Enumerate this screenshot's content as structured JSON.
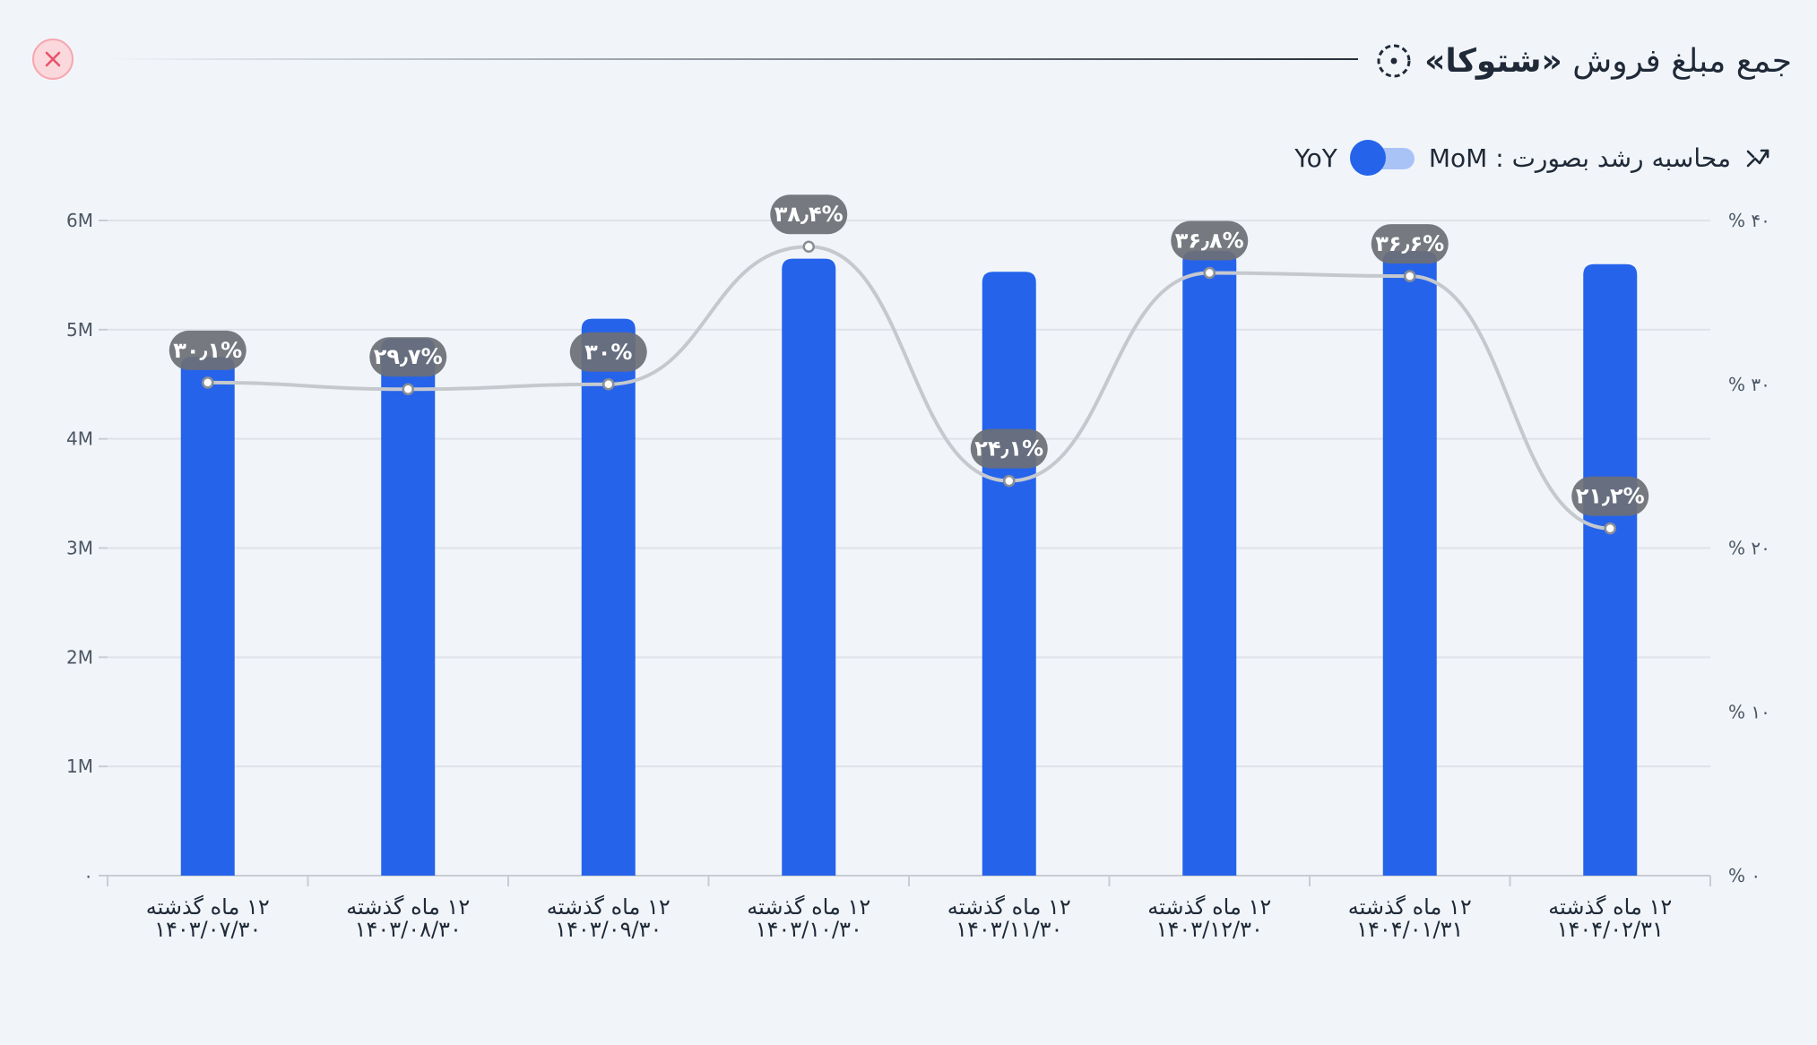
{
  "header": {
    "title_prefix": "جمع مبلغ فروش ",
    "title_brand": "«شتوکا»",
    "icon": "dashed-circle-icon",
    "close_icon": "close-icon"
  },
  "controls": {
    "growth_label": "محاسبه رشد بصورت : MoM",
    "yoy_label": "YoY",
    "trend_icon": "trend-arrows-icon",
    "toggle_state": "MoM"
  },
  "colors": {
    "bar": "#2563eb",
    "line": "#c5c9ce",
    "label_bg": "#6b6f75",
    "close_accent": "#e8536a"
  },
  "chart_data": {
    "type": "bar",
    "categories": [
      [
        "۱۲ ماه گذشته",
        "۱۴۰۳/۰۷/۳۰"
      ],
      [
        "۱۲ ماه گذشته",
        "۱۴۰۳/۰۸/۳۰"
      ],
      [
        "۱۲ ماه گذشته",
        "۱۴۰۳/۰۹/۳۰"
      ],
      [
        "۱۲ ماه گذشته",
        "۱۴۰۳/۱۰/۳۰"
      ],
      [
        "۱۲ ماه گذشته",
        "۱۴۰۳/۱۱/۳۰"
      ],
      [
        "۱۲ ماه گذشته",
        "۱۴۰۳/۱۲/۳۰"
      ],
      [
        "۱۲ ماه گذشته",
        "۱۴۰۴/۰۱/۳۱"
      ],
      [
        "۱۲ ماه گذشته",
        "۱۴۰۴/۰۲/۳۱"
      ]
    ],
    "values": [
      4.75,
      4.92,
      5.1,
      5.65,
      5.53,
      5.72,
      5.72,
      5.6
    ],
    "growth_pct": [
      30.1,
      29.7,
      30.0,
      38.4,
      24.1,
      36.8,
      36.6,
      21.2
    ],
    "growth_labels": [
      "۳۰٫۱%",
      "۲۹٫۷%",
      "۳۰%",
      "۳۸٫۴%",
      "۲۴٫۱%",
      "۳۶٫۸%",
      "۳۶٫۶%",
      "۲۱٫۲%"
    ],
    "ylim": [
      0,
      6
    ],
    "y_ticks": [
      0,
      1,
      2,
      3,
      4,
      5,
      6
    ],
    "y_tick_labels": [
      "۰",
      "1M",
      "2M",
      "3M",
      "4M",
      "5M",
      "6M"
    ],
    "y2lim": [
      0,
      40
    ],
    "y2_ticks": [
      0,
      10,
      20,
      30,
      40
    ],
    "y2_tick_labels": [
      "% ۰",
      "% ۱۰",
      "% ۲۰",
      "% ۳۰",
      "% ۴۰"
    ],
    "grid": true,
    "smooth_line": true
  }
}
